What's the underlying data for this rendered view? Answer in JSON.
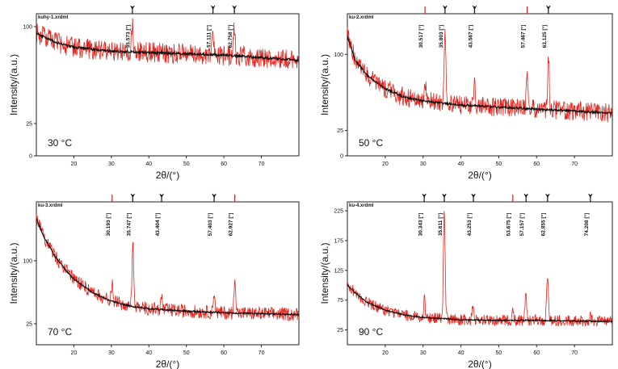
{
  "figure": {
    "x_axis_label": "2θ/(°)",
    "y_axis_label": "Intensity/(a.u.)"
  },
  "colors": {
    "raw": "#e8231d",
    "background": "#111111",
    "marker": "#111111",
    "marker_red": "#d62020",
    "frame": "#222222"
  },
  "chart_data": [
    {
      "type": "line",
      "file": "kuhy-1.xrdml",
      "temperature": "30 °C",
      "xlim": [
        10,
        80
      ],
      "ylim": [
        0,
        110
      ],
      "xticks": [
        20,
        30,
        40,
        50,
        60,
        70
      ],
      "yticks": [
        0,
        25,
        100
      ],
      "peaks": [
        {
          "x": 35.573,
          "label": "35.573 [°]",
          "height": 25
        },
        {
          "x": 57.111,
          "label": "57.111 [°]",
          "height": 18
        },
        {
          "x": 62.758,
          "label": "62.758 [°]",
          "height": 22
        }
      ],
      "background_curve": [
        [
          10,
          95
        ],
        [
          15,
          88
        ],
        [
          20,
          84
        ],
        [
          30,
          81
        ],
        [
          40,
          80
        ],
        [
          50,
          79
        ],
        [
          60,
          78
        ],
        [
          70,
          76
        ],
        [
          80,
          74
        ]
      ],
      "noise": 5,
      "markers": [
        35.6,
        57.1,
        62.8
      ],
      "red_markers": []
    },
    {
      "type": "line",
      "file": "ku-2.xrdml",
      "temperature": "50 °C",
      "xlim": [
        10,
        80
      ],
      "ylim": [
        0,
        140
      ],
      "xticks": [
        20,
        30,
        40,
        50,
        60,
        70
      ],
      "yticks": [
        0,
        25,
        100
      ],
      "peaks": [
        {
          "x": 30.517,
          "label": "30.517 [°]",
          "height": 20
        },
        {
          "x": 35.803,
          "label": "35.803 [°]",
          "height": 70
        },
        {
          "x": 43.567,
          "label": "43.567 [°]",
          "height": 22
        },
        {
          "x": 57.467,
          "label": "57.467 [°]",
          "height": 30
        },
        {
          "x": 63.125,
          "label": "63.125 [°]",
          "height": 50
        }
      ],
      "background_curve": [
        [
          10,
          118
        ],
        [
          12,
          95
        ],
        [
          15,
          80
        ],
        [
          20,
          66
        ],
        [
          25,
          58
        ],
        [
          30,
          54
        ],
        [
          40,
          50
        ],
        [
          50,
          48
        ],
        [
          60,
          46
        ],
        [
          70,
          44
        ],
        [
          80,
          42
        ]
      ],
      "noise": 6,
      "markers": [
        30.5,
        35.8,
        43.6,
        57.5,
        63.1
      ],
      "red_markers": [
        30.5,
        57.5
      ]
    },
    {
      "type": "line",
      "file": "ku-3.xrdml",
      "temperature": "70 °C",
      "xlim": [
        10,
        80
      ],
      "ylim": [
        0,
        170
      ],
      "xticks": [
        20,
        30,
        40,
        50,
        60,
        70
      ],
      "yticks": [
        25,
        100
      ],
      "peaks": [
        {
          "x": 30.193,
          "label": "30.193 [°]",
          "height": 20
        },
        {
          "x": 35.747,
          "label": "35.747 [°]",
          "height": 75
        },
        {
          "x": 43.404,
          "label": "43.404 [°]",
          "height": 15
        },
        {
          "x": 57.403,
          "label": "57.403 [°]",
          "height": 25
        },
        {
          "x": 62.927,
          "label": "62.927 [°]",
          "height": 45
        }
      ],
      "background_curve": [
        [
          10,
          150
        ],
        [
          12,
          128
        ],
        [
          15,
          105
        ],
        [
          18,
          88
        ],
        [
          20,
          78
        ],
        [
          25,
          62
        ],
        [
          30,
          52
        ],
        [
          35,
          46
        ],
        [
          40,
          43
        ],
        [
          50,
          40
        ],
        [
          60,
          38
        ],
        [
          70,
          37
        ],
        [
          80,
          36
        ]
      ],
      "noise": 5,
      "markers": [
        30.2,
        35.7,
        43.4,
        57.4,
        62.9
      ],
      "red_markers": [
        30.2,
        62.9
      ]
    },
    {
      "type": "line",
      "file": "ku-4.xrdml",
      "temperature": "90 °C",
      "xlim": [
        10,
        80
      ],
      "ylim": [
        0,
        240
      ],
      "xticks": [
        20,
        30,
        40,
        50,
        60,
        70
      ],
      "yticks": [
        25,
        75,
        125,
        175,
        225
      ],
      "peaks": [
        {
          "x": 30.343,
          "label": "30.343 [°]",
          "height": 30
        },
        {
          "x": 35.611,
          "label": "35.611 [°]",
          "height": 185
        },
        {
          "x": 43.253,
          "label": "43.253 [°]",
          "height": 30
        },
        {
          "x": 53.675,
          "label": "53.675 [°]",
          "height": 15
        },
        {
          "x": 57.157,
          "label": "57.157 [°]",
          "height": 45
        },
        {
          "x": 62.855,
          "label": "62.855 [°]",
          "height": 80
        },
        {
          "x": 74.208,
          "label": "74.208 [°]",
          "height": 10
        }
      ],
      "background_curve": [
        [
          10,
          100
        ],
        [
          12,
          88
        ],
        [
          15,
          72
        ],
        [
          20,
          58
        ],
        [
          25,
          50
        ],
        [
          30,
          46
        ],
        [
          40,
          42
        ],
        [
          50,
          41
        ],
        [
          60,
          41
        ],
        [
          70,
          40
        ],
        [
          80,
          39
        ]
      ],
      "noise": 6,
      "markers": [
        30.3,
        35.6,
        43.3,
        53.7,
        57.2,
        62.9,
        74.2
      ],
      "red_markers": [
        53.7
      ]
    }
  ]
}
